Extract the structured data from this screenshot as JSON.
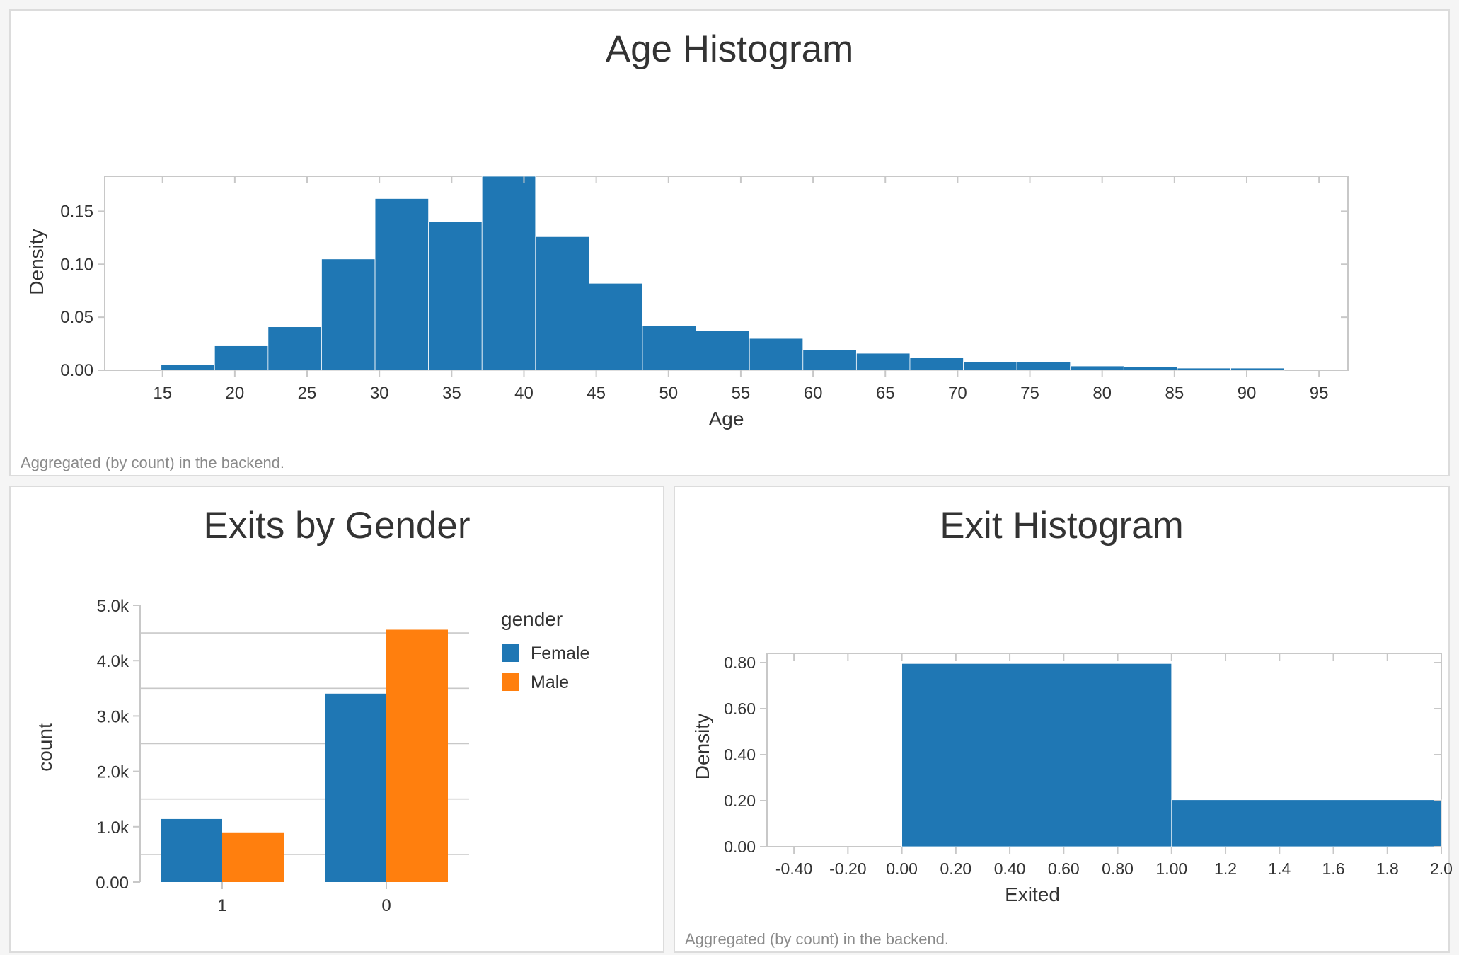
{
  "age_panel": {
    "title": "Age Histogram",
    "note": "Aggregated (by count) in the backend."
  },
  "gender_panel": {
    "title": "Exits by Gender"
  },
  "exit_panel": {
    "title": "Exit Histogram",
    "note": "Aggregated (by count) in the backend."
  },
  "colors": {
    "blue": "#1f77b4",
    "orange": "#ff7f0e"
  },
  "chart_data": [
    {
      "type": "bar",
      "title": "Age Histogram",
      "xlabel": "Age",
      "ylabel": "Density",
      "xlim": [
        11,
        97
      ],
      "ylim": [
        0,
        0.183
      ],
      "xticks": [
        15,
        20,
        25,
        30,
        35,
        40,
        45,
        50,
        55,
        60,
        65,
        70,
        75,
        80,
        85,
        90,
        95
      ],
      "xtick_labels": [
        "15",
        "20",
        "25",
        "30",
        "35",
        "40",
        "45",
        "50",
        "55",
        "60",
        "65",
        "70",
        "75",
        "80",
        "85",
        "90",
        "95"
      ],
      "yticks": [
        0,
        0.05,
        0.1,
        0.15
      ],
      "ytick_labels": [
        "0.00",
        "0.05",
        "0.10",
        "0.15"
      ],
      "bins": [
        {
          "x0": 14.9,
          "x1": 18.6,
          "y": 0.005
        },
        {
          "x0": 18.6,
          "x1": 22.3,
          "y": 0.023
        },
        {
          "x0": 22.3,
          "x1": 26.0,
          "y": 0.041
        },
        {
          "x0": 26.0,
          "x1": 29.7,
          "y": 0.105
        },
        {
          "x0": 29.7,
          "x1": 33.4,
          "y": 0.162
        },
        {
          "x0": 33.4,
          "x1": 37.1,
          "y": 0.14
        },
        {
          "x0": 37.1,
          "x1": 40.8,
          "y": 0.183
        },
        {
          "x0": 40.8,
          "x1": 44.5,
          "y": 0.126
        },
        {
          "x0": 44.5,
          "x1": 48.2,
          "y": 0.082
        },
        {
          "x0": 48.2,
          "x1": 51.9,
          "y": 0.042
        },
        {
          "x0": 51.9,
          "x1": 55.6,
          "y": 0.037
        },
        {
          "x0": 55.6,
          "x1": 59.3,
          "y": 0.03
        },
        {
          "x0": 59.3,
          "x1": 63.0,
          "y": 0.019
        },
        {
          "x0": 63.0,
          "x1": 66.7,
          "y": 0.016
        },
        {
          "x0": 66.7,
          "x1": 70.4,
          "y": 0.012
        },
        {
          "x0": 70.4,
          "x1": 74.1,
          "y": 0.008
        },
        {
          "x0": 74.1,
          "x1": 77.8,
          "y": 0.008
        },
        {
          "x0": 77.8,
          "x1": 81.5,
          "y": 0.004
        },
        {
          "x0": 81.5,
          "x1": 85.2,
          "y": 0.003
        },
        {
          "x0": 85.2,
          "x1": 88.9,
          "y": 0.002
        },
        {
          "x0": 88.9,
          "x1": 92.6,
          "y": 0.002
        }
      ]
    },
    {
      "type": "bar",
      "title": "Exits by Gender",
      "xlabel": "",
      "ylabel": "count",
      "categories": [
        "1",
        "0"
      ],
      "ylim": [
        0,
        5000
      ],
      "yticks": [
        0,
        1000,
        2000,
        3000,
        4000,
        5000
      ],
      "ytick_labels": [
        "0.00",
        "1.0k",
        "2.0k",
        "3.0k",
        "4.0k",
        "5.0k"
      ],
      "legend_title": "gender",
      "legend_position": "right",
      "series": [
        {
          "name": "Female",
          "values": [
            1139,
            3404
          ]
        },
        {
          "name": "Male",
          "values": [
            898,
            4559
          ]
        }
      ]
    },
    {
      "type": "bar",
      "title": "Exit Histogram",
      "xlabel": "Exited",
      "ylabel": "Density",
      "xlim": [
        -0.5,
        2.0
      ],
      "ylim": [
        0,
        0.84
      ],
      "xticks": [
        -0.4,
        -0.2,
        0.0,
        0.2,
        0.4,
        0.6,
        0.8,
        1.0,
        1.2,
        1.4,
        1.6,
        1.8,
        2.0
      ],
      "xtick_labels": [
        "-0.40",
        "-0.20",
        "0.00",
        "0.20",
        "0.40",
        "0.60",
        "0.80",
        "1.00",
        "1.2",
        "1.4",
        "1.6",
        "1.8",
        "2.0"
      ],
      "yticks": [
        0,
        0.2,
        0.4,
        0.6,
        0.8
      ],
      "ytick_labels": [
        "0.00",
        "0.20",
        "0.40",
        "0.60",
        "0.80"
      ],
      "bins": [
        {
          "x0": 0.0,
          "x1": 1.0,
          "y": 0.796
        },
        {
          "x0": 1.0,
          "x1": 2.0,
          "y": 0.204
        }
      ]
    }
  ]
}
